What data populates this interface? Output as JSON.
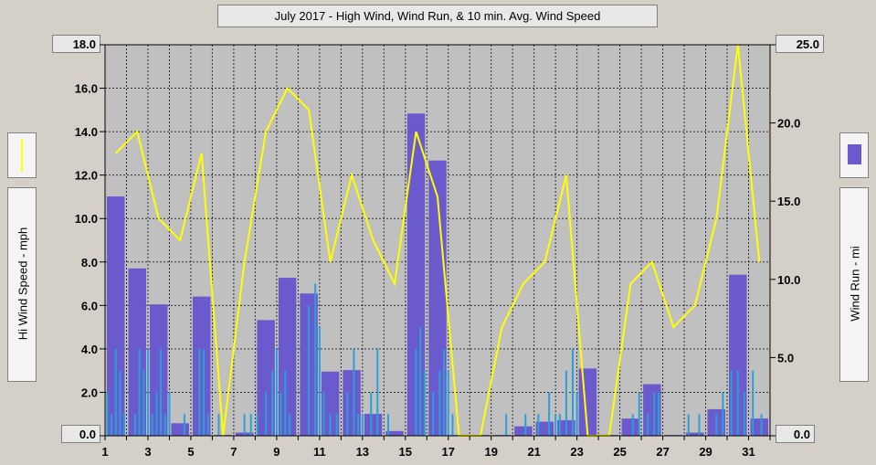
{
  "chart_data": {
    "type": "bar+line",
    "title": "July 2017 - High Wind, Wind Run, & 10 min. Avg. Wind Speed",
    "left_axis": {
      "label": "Hi Wind Speed - mph",
      "ylim": [
        0,
        18
      ],
      "ticks": [
        "0.0",
        "2.0",
        "4.0",
        "6.0",
        "8.0",
        "10.0",
        "12.0",
        "14.0",
        "16.0",
        "18.0"
      ],
      "top_readout": "18.0",
      "bottom_readout": "0.0"
    },
    "right_axis": {
      "label": "Wind Run - mi",
      "ylim": [
        0,
        25
      ],
      "ticks": [
        "0.0",
        "5.0",
        "10.0",
        "15.0",
        "20.0",
        "25.0"
      ],
      "top_readout": "25.0",
      "bottom_readout": "0.0"
    },
    "x_axis": {
      "xlim": [
        1,
        32
      ],
      "ticks": [
        "1",
        "3",
        "5",
        "7",
        "9",
        "11",
        "13",
        "15",
        "17",
        "19",
        "21",
        "23",
        "25",
        "27",
        "29",
        "31"
      ]
    },
    "grid": true,
    "colors": {
      "plot_bg": "#c0c0c0",
      "wind_run": "#6a5acd",
      "hi_wind": "#ffff00",
      "avg_wind": "#2b9fd6",
      "grid": "#303030"
    },
    "legend": {
      "hi_wind_icon": "yellow-line",
      "wind_run_icon": "purple-bar"
    },
    "series": [
      {
        "name": "Wind Run",
        "axis": "right",
        "type": "bar",
        "x": [
          1,
          2,
          3,
          4,
          5,
          6,
          7,
          8,
          9,
          10,
          11,
          12,
          13,
          14,
          15,
          16,
          17,
          18,
          19,
          20,
          21,
          22,
          23,
          24,
          25,
          26,
          27,
          28,
          29,
          30,
          31,
          32
        ],
        "values": [
          15.3,
          10.7,
          8.4,
          0.8,
          8.9,
          0.05,
          0.2,
          7.4,
          10.1,
          9.1,
          4.1,
          4.2,
          1.4,
          0.3,
          20.6,
          17.6,
          0.05,
          0.05,
          0.05,
          0.6,
          0.9,
          1.0,
          4.3,
          0.05,
          1.1,
          3.3,
          0.05,
          0.2,
          1.7,
          10.3,
          1.1,
          0
        ]
      },
      {
        "name": "Hi Wind Speed",
        "axis": "left",
        "type": "line",
        "x": [
          1.5,
          2.5,
          3.5,
          4.5,
          5.5,
          6.5,
          7.5,
          8.5,
          9.5,
          10.5,
          11.5,
          12.5,
          13.5,
          14.5,
          15.5,
          16.5,
          17.5,
          18.5,
          19.5,
          20.5,
          21.5,
          22.5,
          23.5,
          24.5,
          25.5,
          26.5,
          27.5,
          28.5,
          29.5,
          30.5,
          31.5
        ],
        "values": [
          13,
          14,
          10,
          9,
          13,
          0,
          8,
          14,
          16,
          15,
          8,
          12,
          9,
          7,
          14,
          11,
          0,
          0,
          5,
          7,
          8,
          12,
          0,
          0,
          7,
          8,
          5,
          6,
          10,
          18,
          8
        ]
      },
      {
        "name": "10 min. Avg. Wind Speed",
        "axis": "left",
        "type": "spikes",
        "x": [
          1.1,
          1.3,
          1.5,
          1.7,
          1.9,
          2.4,
          2.6,
          2.8,
          3.0,
          3.2,
          3.4,
          3.6,
          3.8,
          4.0,
          4.7,
          5.4,
          5.6,
          5.8,
          6.3,
          7.5,
          7.8,
          8.1,
          8.5,
          8.8,
          9.0,
          9.2,
          9.4,
          9.6,
          10.5,
          10.8,
          11.0,
          11.2,
          11.5,
          11.8,
          12.3,
          12.6,
          12.8,
          13.0,
          13.4,
          13.7,
          14.2,
          15.5,
          15.7,
          15.9,
          16.3,
          16.6,
          16.8,
          17.0,
          17.2,
          19.7,
          20.6,
          21.2,
          21.7,
          22.0,
          22.2,
          22.5,
          22.8,
          23.0,
          25.6,
          25.9,
          26.3,
          26.6,
          26.8,
          28.2,
          28.7,
          29.5,
          29.8,
          30.2,
          30.5,
          30.8,
          31.2,
          31.6
        ],
        "values": [
          2,
          1,
          4,
          3,
          1,
          1,
          4,
          3,
          4,
          1,
          2,
          4,
          1,
          2,
          1,
          4,
          4,
          1,
          1,
          1,
          1,
          1,
          2,
          3,
          4,
          2,
          3,
          1,
          6,
          7,
          5,
          2,
          1,
          1,
          2,
          4,
          1,
          1,
          2,
          4,
          1,
          4,
          5,
          3,
          2,
          3,
          4,
          3,
          1,
          1,
          1,
          1,
          2,
          1,
          1,
          3,
          4,
          2,
          1,
          2,
          1,
          2,
          2,
          1,
          1,
          1,
          2,
          3,
          3,
          2,
          3,
          1
        ]
      }
    ]
  }
}
